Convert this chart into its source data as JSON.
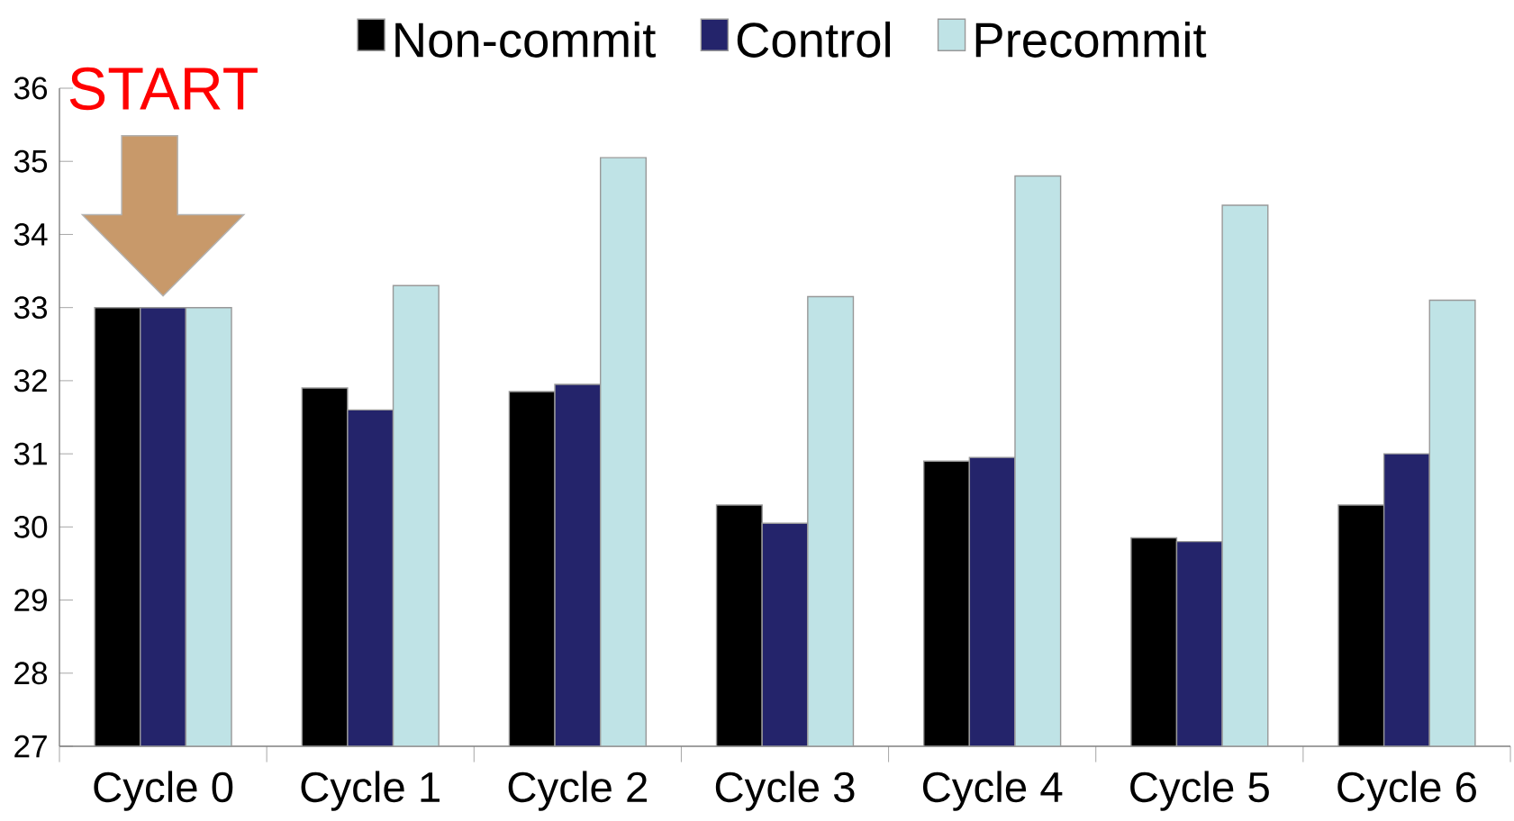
{
  "chart_data": {
    "type": "bar",
    "categories": [
      "Cycle 0",
      "Cycle 1",
      "Cycle 2",
      "Cycle 3",
      "Cycle 4",
      "Cycle 5",
      "Cycle 6"
    ],
    "series": [
      {
        "name": "Non-commit",
        "color": "#000000",
        "values": [
          33.0,
          31.9,
          31.85,
          30.3,
          30.9,
          29.85,
          30.3
        ]
      },
      {
        "name": "Control",
        "color": "#24246b",
        "values": [
          33.0,
          31.6,
          31.95,
          30.05,
          30.95,
          29.8,
          31.0
        ]
      },
      {
        "name": "Precommit",
        "color": "#bfe3e6",
        "values": [
          33.0,
          33.3,
          35.05,
          33.15,
          34.8,
          34.4,
          33.1
        ]
      }
    ],
    "ylim": [
      27,
      36
    ],
    "yticks": [
      27,
      28,
      29,
      30,
      31,
      32,
      33,
      34,
      35,
      36
    ],
    "legend": "top",
    "grid": false,
    "annotations": [
      "START"
    ]
  }
}
